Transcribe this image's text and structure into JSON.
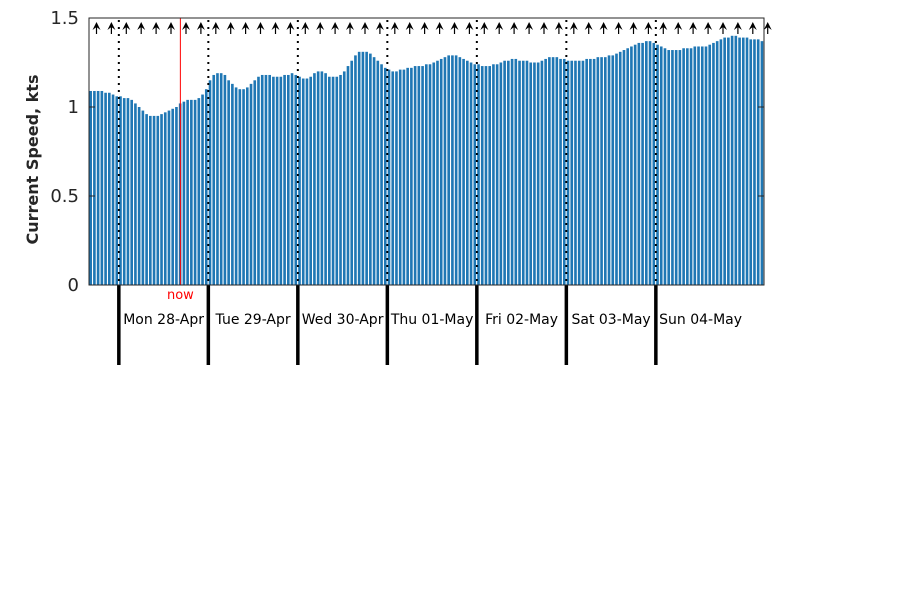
{
  "chart_data": {
    "type": "bar",
    "title": "",
    "ylabel": "Current Speed, kts",
    "xlabel": "",
    "ylim": [
      0,
      1.5
    ],
    "yticks": [
      0,
      0.5,
      1,
      1.5
    ],
    "ytick_labels": [
      "0",
      "0.5",
      "1",
      "1.5"
    ],
    "grid": false,
    "colors": {
      "bars": "#1f77b4",
      "now_line": "#ff0000",
      "day_markers": "#000000",
      "arrows": "#000000"
    },
    "now_label": "now",
    "now_hour_offset": 24,
    "days": [
      "Mon 28-Apr",
      "Tue 29-Apr",
      "Wed 30-Apr",
      "Thu 01-May",
      "Fri 02-May",
      "Sat 03-May",
      "Sun 04-May"
    ],
    "hours_before_first_day": 8,
    "hours_per_bar": 1,
    "arrow_direction_deg": 0,
    "values": [
      1.09,
      1.09,
      1.09,
      1.09,
      1.08,
      1.08,
      1.07,
      1.06,
      1.06,
      1.05,
      1.05,
      1.04,
      1.02,
      1.0,
      0.98,
      0.96,
      0.95,
      0.95,
      0.95,
      0.96,
      0.97,
      0.98,
      0.99,
      1.0,
      1.02,
      1.03,
      1.04,
      1.04,
      1.04,
      1.05,
      1.07,
      1.1,
      1.15,
      1.18,
      1.19,
      1.19,
      1.18,
      1.15,
      1.13,
      1.11,
      1.1,
      1.1,
      1.11,
      1.13,
      1.15,
      1.17,
      1.18,
      1.18,
      1.18,
      1.17,
      1.17,
      1.17,
      1.18,
      1.18,
      1.19,
      1.18,
      1.17,
      1.16,
      1.16,
      1.17,
      1.19,
      1.2,
      1.2,
      1.19,
      1.17,
      1.17,
      1.17,
      1.18,
      1.2,
      1.23,
      1.26,
      1.29,
      1.31,
      1.31,
      1.31,
      1.3,
      1.28,
      1.26,
      1.24,
      1.22,
      1.21,
      1.2,
      1.2,
      1.21,
      1.21,
      1.22,
      1.22,
      1.23,
      1.23,
      1.23,
      1.24,
      1.24,
      1.25,
      1.26,
      1.27,
      1.28,
      1.29,
      1.29,
      1.29,
      1.28,
      1.27,
      1.26,
      1.25,
      1.24,
      1.24,
      1.23,
      1.23,
      1.23,
      1.24,
      1.24,
      1.25,
      1.26,
      1.26,
      1.27,
      1.27,
      1.26,
      1.26,
      1.26,
      1.25,
      1.25,
      1.25,
      1.26,
      1.27,
      1.28,
      1.28,
      1.28,
      1.27,
      1.27,
      1.26,
      1.26,
      1.26,
      1.26,
      1.26,
      1.27,
      1.27,
      1.27,
      1.28,
      1.28,
      1.28,
      1.29,
      1.29,
      1.3,
      1.31,
      1.32,
      1.33,
      1.34,
      1.35,
      1.36,
      1.36,
      1.37,
      1.37,
      1.36,
      1.35,
      1.34,
      1.33,
      1.32,
      1.32,
      1.32,
      1.32,
      1.33,
      1.33,
      1.33,
      1.34,
      1.34,
      1.34,
      1.34,
      1.35,
      1.36,
      1.37,
      1.38,
      1.39,
      1.39,
      1.4,
      1.4,
      1.39,
      1.39,
      1.39,
      1.38,
      1.38,
      1.38,
      1.37
    ]
  }
}
